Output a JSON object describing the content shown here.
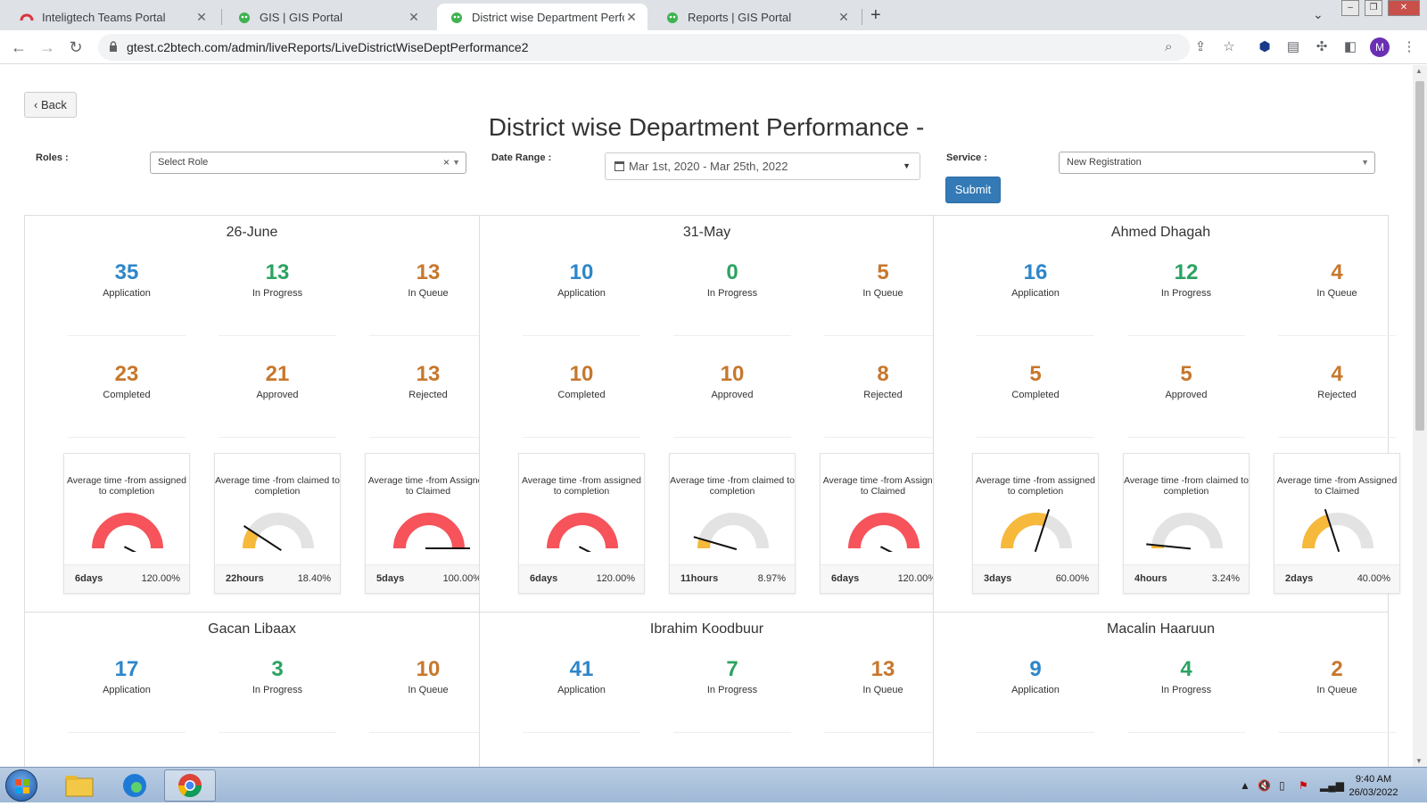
{
  "browser": {
    "tabs": [
      {
        "title": "Inteligtech Teams Portal",
        "icon": "teams-logo-icon"
      },
      {
        "title": "GIS | GIS Portal",
        "icon": "gis-logo-icon"
      },
      {
        "title": "District wise Department Perform",
        "icon": "gis-logo-icon",
        "active": true
      },
      {
        "title": "Reports | GIS Portal",
        "icon": "gis-logo-icon"
      }
    ],
    "url": "gtest.c2btech.com/admin/liveReports/LiveDistrictWiseDeptPerformance2",
    "profile_initial": "M"
  },
  "page": {
    "back_label": "Back",
    "title": "District wise Department Performance -",
    "filters": {
      "roles_label": "Roles :",
      "roles_value": "Select Role",
      "date_label": "Date Range :",
      "date_value": "Mar 1st, 2020 - Mar 25th, 2022",
      "service_label": "Service :",
      "service_value": "New Registration",
      "submit_label": "Submit"
    }
  },
  "stat_labels": {
    "application": "Application",
    "in_progress": "In Progress",
    "in_queue": "In Queue",
    "completed": "Completed",
    "approved": "Approved",
    "rejected": "Rejected"
  },
  "gauge_titles": {
    "a2c": "Average time -from assigned to completion",
    "c2c": "Average time -from claimed to completion",
    "a2cl": "Average time -from Assigned to Claimed"
  },
  "colors": {
    "red": "#f6535b",
    "yellow": "#f6b93b",
    "grey": "#e3e3e3",
    "needle": "#111111"
  },
  "districts": [
    {
      "name": "26-June",
      "application": "35",
      "in_progress": "13",
      "in_queue": "13",
      "completed": "23",
      "approved": "21",
      "rejected": "13",
      "gauges": [
        {
          "time": "6days",
          "pct": "120.00%",
          "value": 1.2
        },
        {
          "time": "22hours",
          "pct": "18.40%",
          "value": 0.184
        },
        {
          "time": "5days",
          "pct": "100.00%",
          "value": 1.0
        }
      ]
    },
    {
      "name": "31-May",
      "application": "10",
      "in_progress": "0",
      "in_queue": "5",
      "completed": "10",
      "approved": "10",
      "rejected": "8",
      "gauges": [
        {
          "time": "6days",
          "pct": "120.00%",
          "value": 1.2
        },
        {
          "time": "11hours",
          "pct": "8.97%",
          "value": 0.0897
        },
        {
          "time": "6days",
          "pct": "120.00%",
          "value": 1.2
        }
      ]
    },
    {
      "name": "Ahmed Dhagah",
      "application": "16",
      "in_progress": "12",
      "in_queue": "4",
      "completed": "5",
      "approved": "5",
      "rejected": "4",
      "gauges": [
        {
          "time": "3days",
          "pct": "60.00%",
          "value": 0.6
        },
        {
          "time": "4hours",
          "pct": "3.24%",
          "value": 0.0324
        },
        {
          "time": "2days",
          "pct": "40.00%",
          "value": 0.4
        }
      ]
    },
    {
      "name": "Gacan Libaax",
      "application": "17",
      "in_progress": "3",
      "in_queue": "10"
    },
    {
      "name": "Ibrahim Koodbuur",
      "application": "41",
      "in_progress": "7",
      "in_queue": "13"
    },
    {
      "name": "Macalin Haaruun",
      "application": "9",
      "in_progress": "4",
      "in_queue": "2"
    }
  ],
  "taskbar": {
    "time": "9:40 AM",
    "date": "26/03/2022"
  }
}
